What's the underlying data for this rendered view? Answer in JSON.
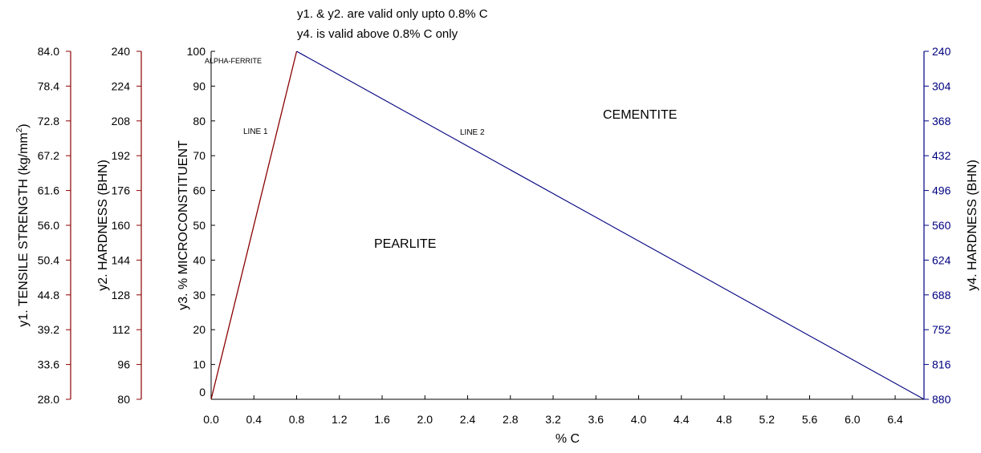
{
  "chart_data": {
    "type": "line",
    "notes": [
      "y1. & y2. are valid only upto 0.8% C",
      "y4. is valid above 0.8% C only"
    ],
    "xlabel": "% C",
    "xlim": [
      0.0,
      6.67
    ],
    "xticks": [
      "0.0",
      "0.4",
      "0.8",
      "1.2",
      "1.6",
      "2.0",
      "2.4",
      "2.8",
      "3.2",
      "3.6",
      "4.0",
      "4.4",
      "4.8",
      "5.2",
      "5.6",
      "6.0",
      "6.4"
    ],
    "axes": {
      "y1": {
        "label_main": "y1. TENSILE STRENGTH (kg/mm",
        "label_sup": "2",
        "label_end": ")",
        "ticks": [
          "28.0",
          "33.6",
          "39.2",
          "44.8",
          "50.4",
          "56.0",
          "61.6",
          "67.2",
          "72.8",
          "78.4",
          "84.0"
        ],
        "color": "#8B0000"
      },
      "y2": {
        "label": "y2. HARDNESS (BHN)",
        "ticks": [
          "80",
          "96",
          "112",
          "128",
          "144",
          "160",
          "176",
          "192",
          "208",
          "224",
          "240"
        ],
        "color": "#8B0000"
      },
      "y3": {
        "label": "y3. % MICROCONSTITUENT",
        "ylim": [
          0,
          100
        ],
        "ticks": [
          "0",
          "10",
          "20",
          "30",
          "40",
          "50",
          "60",
          "70",
          "80",
          "90",
          "100"
        ],
        "color": "#000000"
      },
      "y4": {
        "label": "y4. HARDNESS (BHN)",
        "ticks": [
          "240",
          "304",
          "368",
          "432",
          "496",
          "560",
          "624",
          "688",
          "752",
          "816",
          "880"
        ],
        "color": "#000080"
      }
    },
    "series": [
      {
        "label": "LINE 1",
        "color": "#8B0000",
        "x": [
          0.0,
          0.8
        ],
        "y": [
          0,
          100
        ]
      },
      {
        "label": "LINE 2",
        "color": "#000080",
        "x": [
          0.8,
          6.67
        ],
        "y": [
          100,
          0
        ]
      }
    ],
    "annotations": {
      "alpha": "ALPHA-FERRITE",
      "cementite": "CEMENTITE",
      "pearlite": "PEARLITE"
    }
  }
}
